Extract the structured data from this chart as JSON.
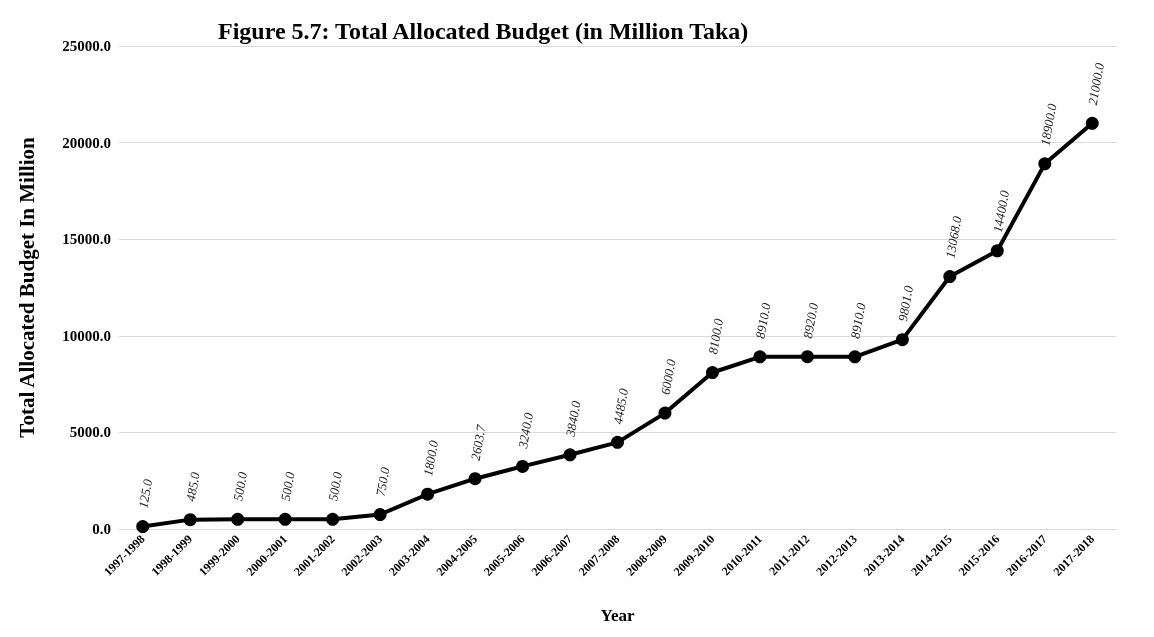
{
  "chart_data": {
    "type": "line",
    "title": "Figure 5.7: Total Allocated Budget (in Million Taka)",
    "xlabel": "Year",
    "ylabel": "Total Allocated Budget In Million",
    "categories": [
      "1997-1998",
      "1998-1999",
      "1999-2000",
      "2000-2001",
      "2001-2002",
      "2002-2003",
      "2003-2004",
      "2004-2005",
      "2005-2006",
      "2006-2007",
      "2007-2008",
      "2008-2009",
      "2009-2010",
      "2010-2011",
      "2011-2012",
      "2012-2013",
      "2013-2014",
      "2014-2015",
      "2015-2016",
      "2016-2017",
      "2017-2018"
    ],
    "series": [
      {
        "color": "#000000",
        "values": [
          125,
          485,
          500,
          500,
          500,
          750,
          1800,
          2603.7,
          3240,
          3840,
          4485,
          6000,
          8100,
          8910,
          8920,
          8910,
          9801,
          13068,
          14400,
          18900,
          21000
        ],
        "value_labels": [
          "125.0",
          "485.0",
          "500.0",
          "500.0",
          "500.0",
          "750.0",
          "1800.0",
          "2603.7",
          "3240.0",
          "3840.0",
          "4485.0",
          "6000.0",
          "8100.0",
          "8910.0",
          "8920.0",
          "8910.0",
          "9801.0",
          "13068.0",
          "14400.0",
          "18900.0",
          "21000.0"
        ]
      }
    ],
    "ylim": [
      0,
      25000
    ],
    "yticks": [
      {
        "value": 0,
        "label": "0.0"
      },
      {
        "value": 5000,
        "label": "5000.0"
      },
      {
        "value": 10000,
        "label": "10000.0"
      },
      {
        "value": 15000,
        "label": "15000.0"
      },
      {
        "value": 20000,
        "label": "20000.0"
      },
      {
        "value": 25000,
        "label": "25000.0"
      }
    ],
    "grid": "y",
    "marker": "circle",
    "line_style": "solid"
  }
}
